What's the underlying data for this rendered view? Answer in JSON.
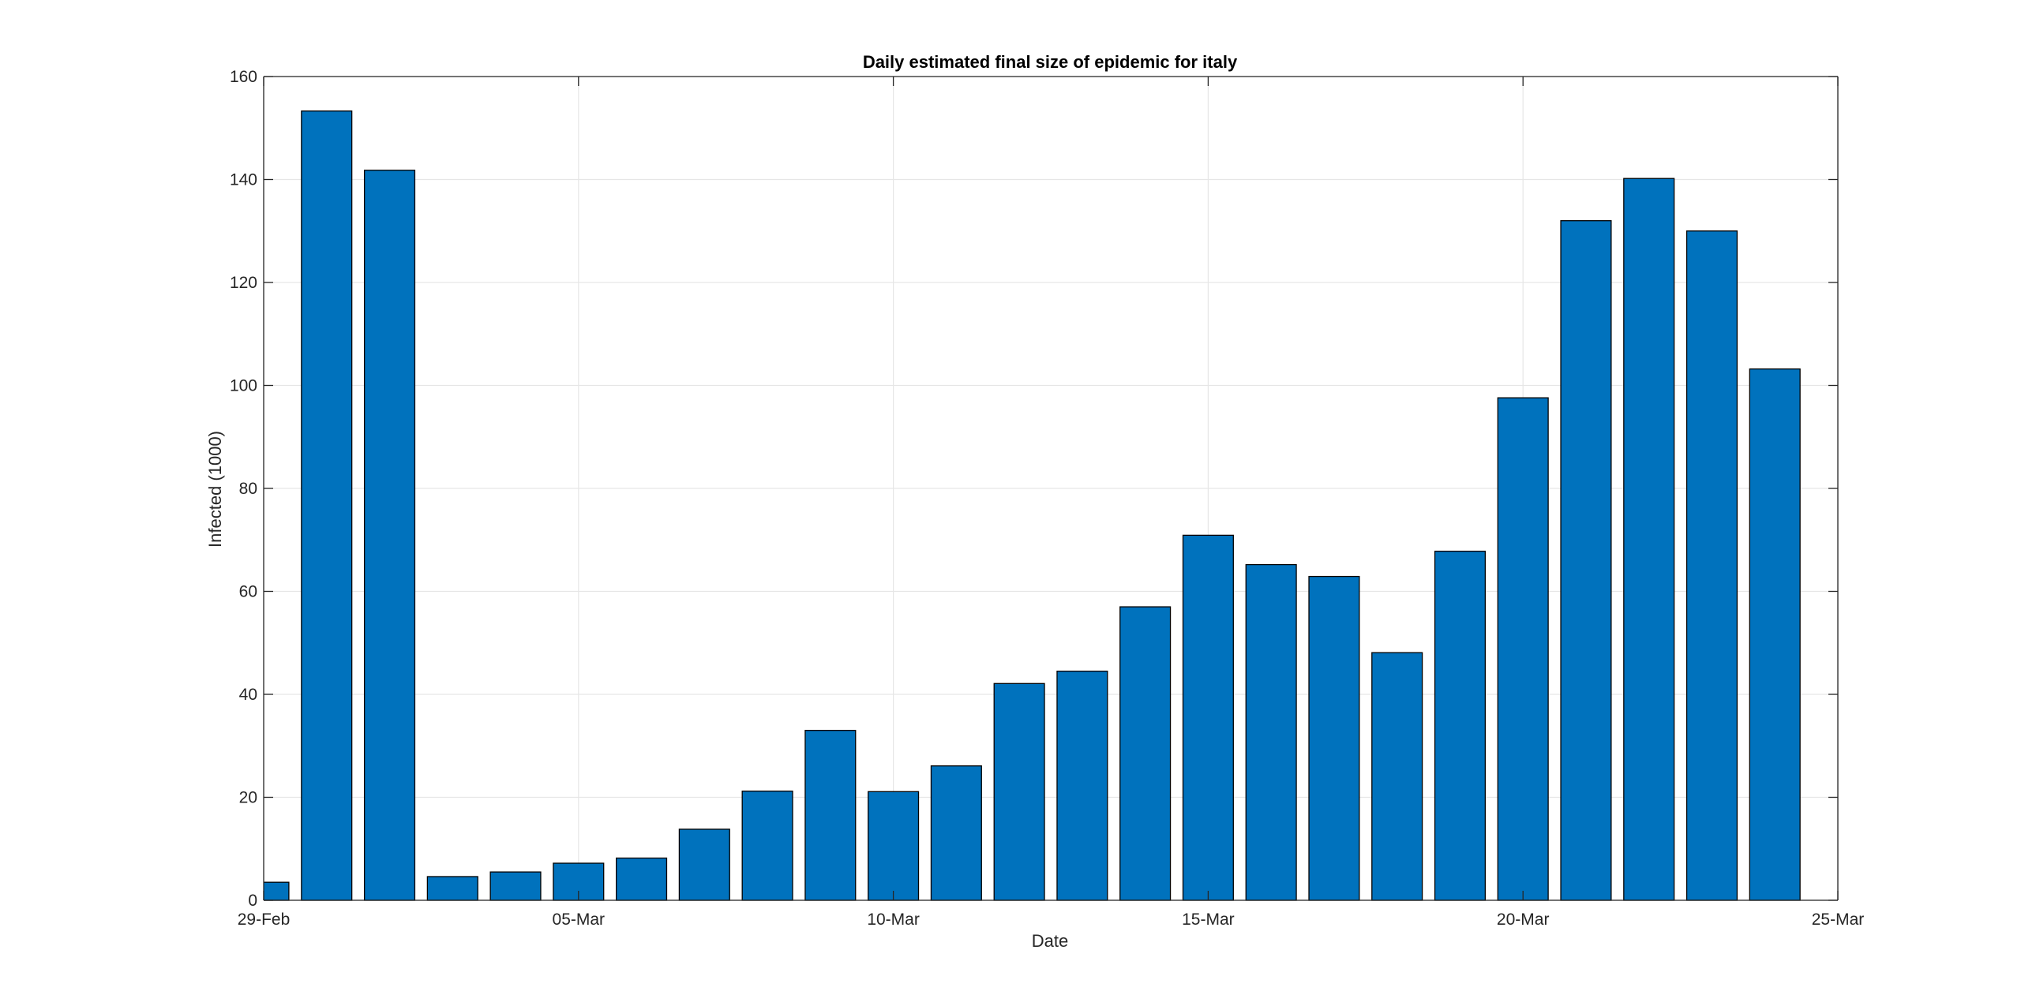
{
  "chart_data": {
    "type": "bar",
    "title": "Daily estimated final size of epidemic for italy",
    "xlabel": "Date",
    "ylabel": "Infected (1000)",
    "x": [
      "2020-02-29",
      "2020-03-01",
      "2020-03-02",
      "2020-03-03",
      "2020-03-04",
      "2020-03-05",
      "2020-03-06",
      "2020-03-07",
      "2020-03-08",
      "2020-03-09",
      "2020-03-10",
      "2020-03-11",
      "2020-03-12",
      "2020-03-13",
      "2020-03-14",
      "2020-03-15",
      "2020-03-16",
      "2020-03-17",
      "2020-03-18",
      "2020-03-19",
      "2020-03-20",
      "2020-03-21",
      "2020-03-22",
      "2020-03-23",
      "2020-03-24"
    ],
    "values": [
      3.5,
      153.3,
      141.8,
      4.6,
      5.5,
      7.2,
      8.2,
      13.8,
      21.2,
      33.0,
      21.1,
      26.1,
      42.1,
      44.5,
      57.0,
      70.9,
      65.2,
      62.9,
      48.1,
      67.8,
      97.6,
      132.0,
      140.2,
      130.0,
      103.2
    ],
    "xlim": [
      "2020-02-29",
      "2020-03-25"
    ],
    "ylim": [
      0,
      160
    ],
    "yticks": [
      0,
      20,
      40,
      60,
      80,
      100,
      120,
      140,
      160
    ],
    "xticks": [
      {
        "date": "2020-02-29",
        "label": "29-Feb"
      },
      {
        "date": "2020-03-05",
        "label": "05-Mar"
      },
      {
        "date": "2020-03-10",
        "label": "10-Mar"
      },
      {
        "date": "2020-03-15",
        "label": "15-Mar"
      },
      {
        "date": "2020-03-20",
        "label": "20-Mar"
      },
      {
        "date": "2020-03-25",
        "label": "25-Mar"
      }
    ],
    "grid": true,
    "bar_color": "#0072BD",
    "bar_edge_color": "#000000"
  }
}
